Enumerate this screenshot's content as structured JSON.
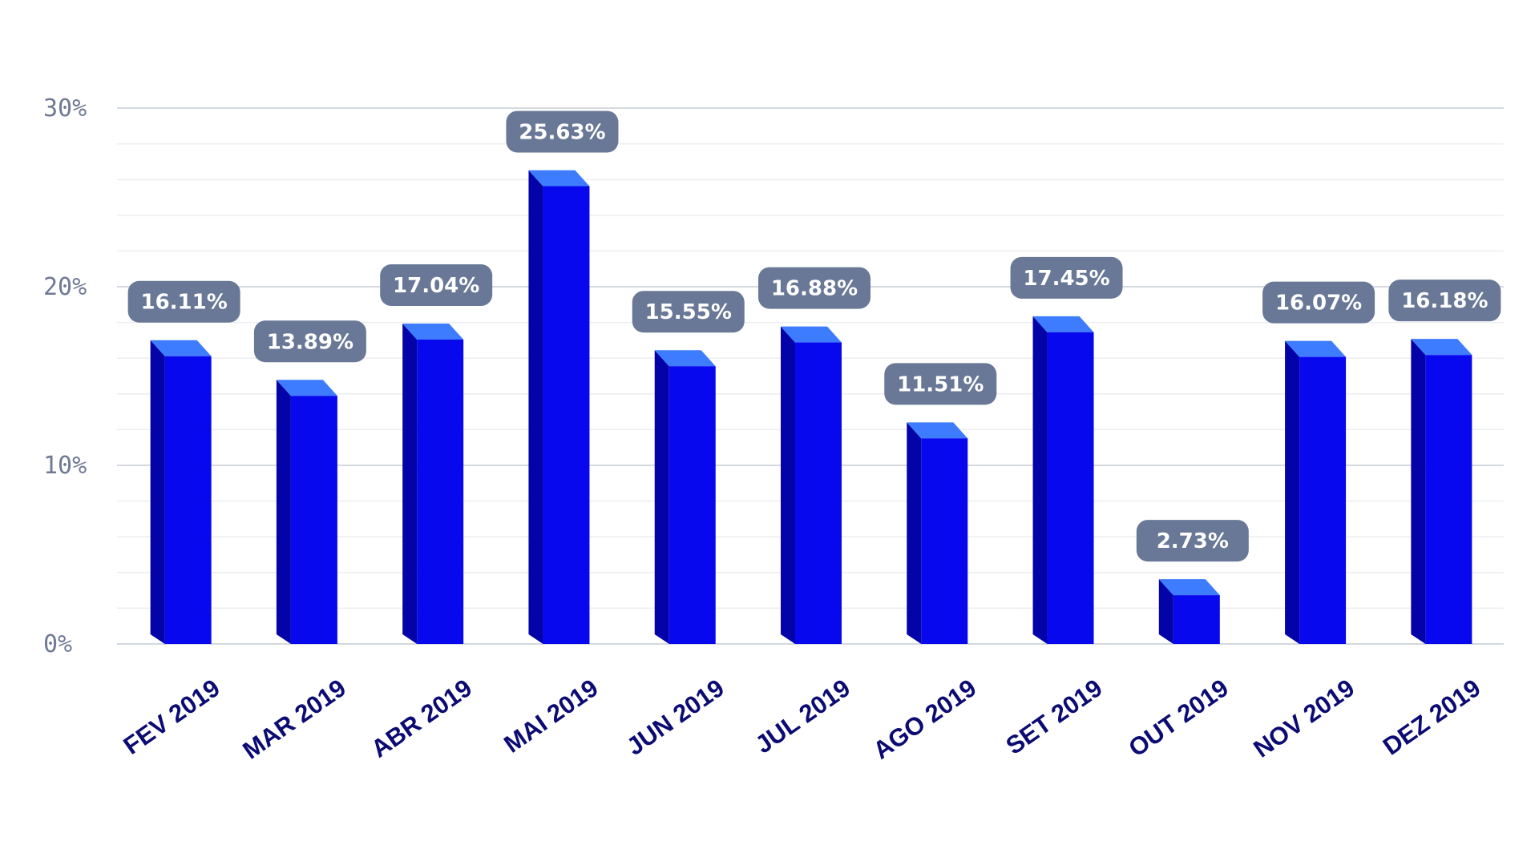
{
  "chart_data": {
    "type": "bar",
    "categories": [
      "FEV 2019",
      "MAR 2019",
      "ABR 2019",
      "MAI 2019",
      "JUN 2019",
      "JUL 2019",
      "AGO 2019",
      "SET 2019",
      "OUT 2019",
      "NOV 2019",
      "DEZ 2019"
    ],
    "values": [
      16.11,
      13.89,
      17.04,
      25.63,
      15.55,
      16.88,
      11.51,
      17.45,
      2.73,
      16.07,
      16.18
    ],
    "value_labels": [
      "16.11%",
      "13.89%",
      "17.04%",
      "25.63%",
      "15.55%",
      "16.88%",
      "11.51%",
      "17.45%",
      "2.73%",
      "16.07%",
      "16.18%"
    ],
    "y_ticks": [
      0,
      10,
      20,
      30
    ],
    "y_tick_labels": [
      "0%",
      "10%",
      "20%",
      "30%"
    ],
    "ylim": [
      0,
      30
    ],
    "grid": true,
    "legend": "none",
    "colors": {
      "bar_front": "#0808ee",
      "bar_side": "#0303a8",
      "bar_top": "#3d7bff",
      "label_box": "#687896",
      "label_text": "#ffffff",
      "category_text": "#0b0b73",
      "tick_text": "#6f7a94",
      "grid_major": "#d4d8df",
      "grid_minor": "#eceef2"
    }
  }
}
